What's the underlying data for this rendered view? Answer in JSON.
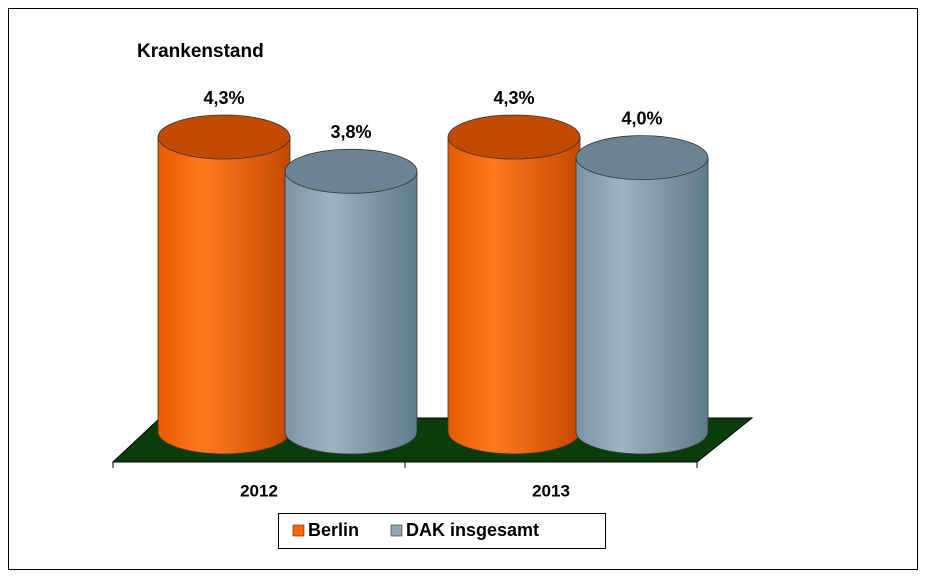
{
  "chart_data": {
    "type": "bar3d",
    "title": "Krankenstand",
    "categories": [
      "2012",
      "2013"
    ],
    "series": [
      {
        "name": "Berlin",
        "color": "#ff6600",
        "values": [
          4.3,
          4.3
        ],
        "value_labels": [
          "4,3%",
          "4,3%"
        ]
      },
      {
        "name": "DAK insgesamt",
        "color": "#8ca6b4",
        "values": [
          3.8,
          4.0
        ],
        "value_labels": [
          "3,8%",
          "4,0%"
        ]
      }
    ]
  }
}
